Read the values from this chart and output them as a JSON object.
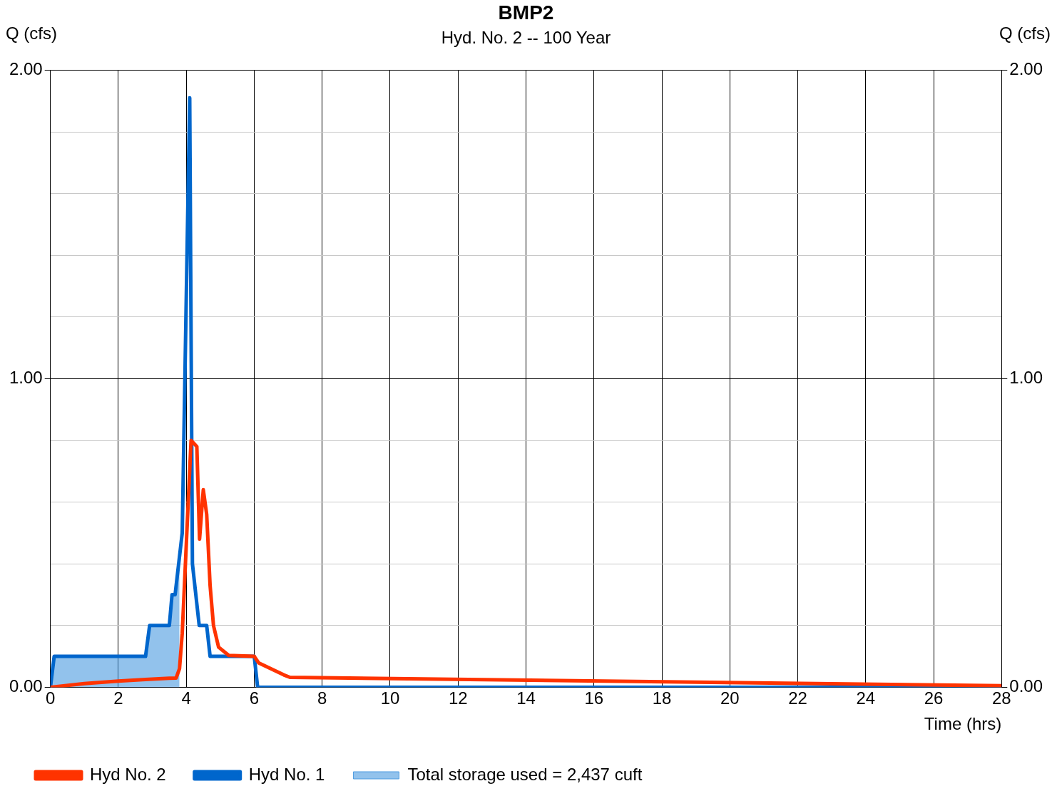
{
  "chart_data": {
    "type": "line",
    "title": "BMP2",
    "subtitle": "Hyd. No. 2 -- 100 Year",
    "xlabel": "Time (hrs)",
    "ylabel": "Q (cfs)",
    "y2label": "Q (cfs)",
    "xlim": [
      0,
      28
    ],
    "xticks": [
      0,
      2,
      4,
      6,
      8,
      10,
      12,
      14,
      16,
      18,
      20,
      22,
      24,
      26,
      28
    ],
    "ylim": [
      0,
      2
    ],
    "yticks": [
      {
        "value": 0,
        "label": "0.00"
      },
      {
        "value": 0.2,
        "label": null
      },
      {
        "value": 0.4,
        "label": null
      },
      {
        "value": 0.6,
        "label": null
      },
      {
        "value": 0.8,
        "label": null
      },
      {
        "value": 1,
        "label": "1.00"
      },
      {
        "value": 1.2,
        "label": null
      },
      {
        "value": 1.4,
        "label": null
      },
      {
        "value": 1.6,
        "label": null
      },
      {
        "value": 1.8,
        "label": null
      },
      {
        "value": 2,
        "label": "2.00"
      }
    ],
    "y2lim": [
      0,
      2
    ],
    "y2ticks": [
      {
        "value": 0,
        "label": "0.00"
      },
      {
        "value": 1,
        "label": "1.00"
      },
      {
        "value": 2,
        "label": "2.00"
      }
    ],
    "grid": true,
    "legend": "bottom",
    "series": [
      {
        "name": "Hyd No. 2",
        "color": "#ff3300",
        "x": [
          0,
          1,
          2,
          2.8,
          3.5,
          3.7,
          3.8,
          3.88,
          4.14,
          4.31,
          4.39,
          4.5,
          4.6,
          4.7,
          4.8,
          4.95,
          5.25,
          6.0,
          6.13,
          6.87,
          7.05,
          28
        ],
        "values": [
          0,
          0.012,
          0.02,
          0.025,
          0.029,
          0.03,
          0.06,
          0.175,
          0.8,
          0.78,
          0.48,
          0.64,
          0.56,
          0.33,
          0.2,
          0.13,
          0.103,
          0.1,
          0.079,
          0.04,
          0.032,
          0.005
        ]
      },
      {
        "name": "Hyd No. 1",
        "color": "#0066cc",
        "x": [
          0,
          0.11,
          2.8,
          2.92,
          3.5,
          3.58,
          3.67,
          3.88,
          4.1,
          4.18,
          4.38,
          4.6,
          4.7,
          6.0,
          6.1,
          28
        ],
        "values": [
          0,
          0.1,
          0.1,
          0.2,
          0.2,
          0.3,
          0.3,
          0.5,
          1.91,
          0.4,
          0.2,
          0.2,
          0.1,
          0.1,
          0,
          0
        ]
      },
      {
        "name": "Total storage used = 2,437 cuft",
        "type": "area",
        "color": "#4a9ae0",
        "x": [
          0,
          0.11,
          1,
          2,
          2.8,
          2.92,
          3.5,
          3.58,
          3.67,
          3.7,
          3.8
        ],
        "values": [
          0,
          0.1,
          0.1,
          0.1,
          0.1,
          0.2,
          0.2,
          0.3,
          0.3,
          0.33,
          0.42
        ]
      }
    ]
  }
}
